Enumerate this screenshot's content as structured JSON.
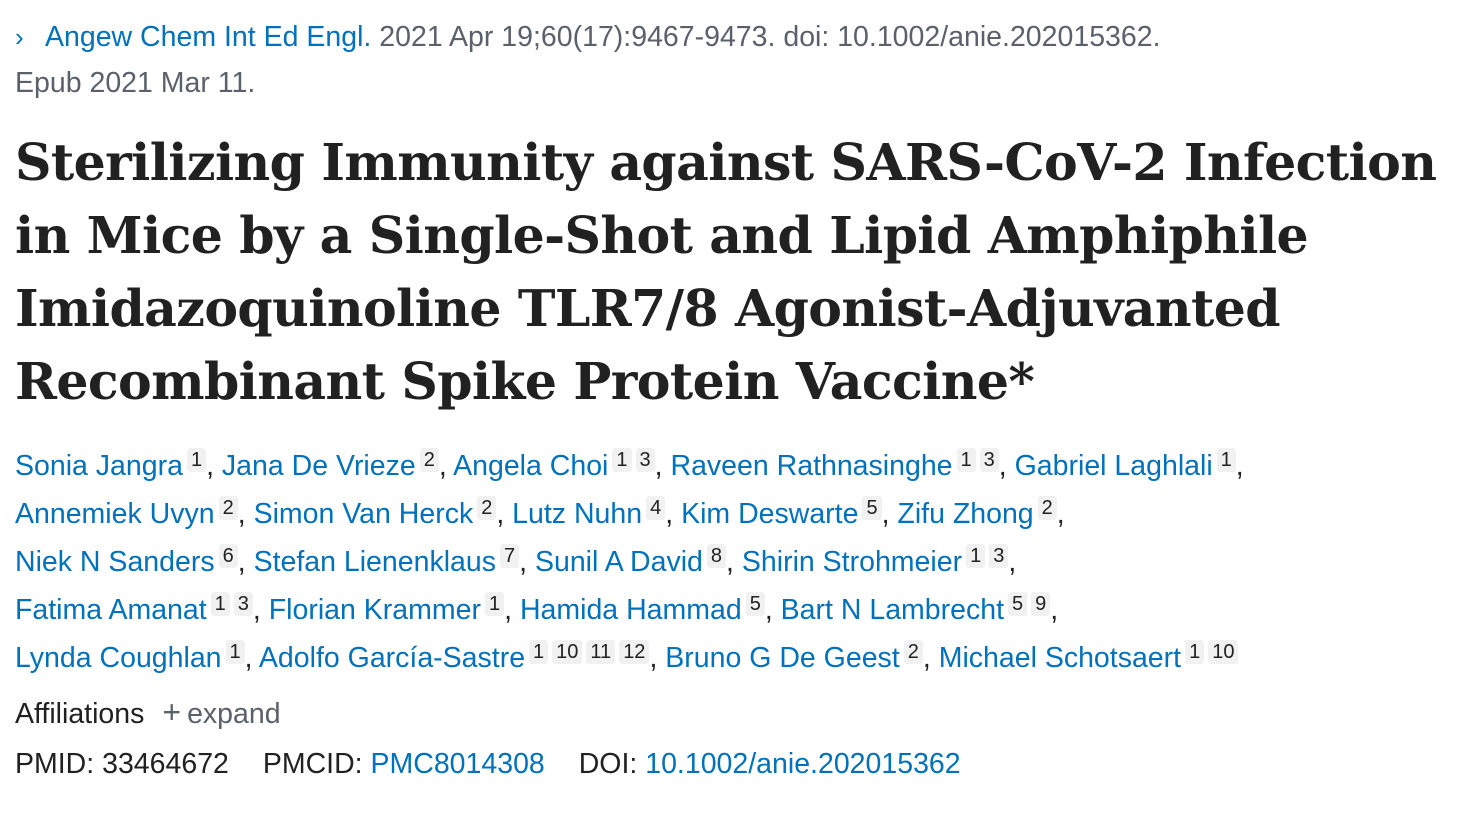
{
  "citation": {
    "chevron": "›",
    "journal": "Angew Chem Int Ed Engl.",
    "details": " 2021 Apr 19;60(17):9467-9473. doi: 10.1002/anie.202015362.",
    "epub": "Epub 2021 Mar 11."
  },
  "title": "Sterilizing Immunity against SARS-CoV-2 Infection in Mice by a Single-Shot and Lipid Amphiphile Imidazoquinoline TLR7/8 Agonist-Adjuvanted Recombinant Spike Protein Vaccine*",
  "authors": [
    {
      "name": "Sonia Jangra",
      "aff": [
        "1"
      ]
    },
    {
      "name": "Jana De Vrieze",
      "aff": [
        "2"
      ]
    },
    {
      "name": "Angela Choi",
      "aff": [
        "1",
        "3"
      ]
    },
    {
      "name": "Raveen Rathnasinghe",
      "aff": [
        "1",
        "3"
      ]
    },
    {
      "name": "Gabriel Laghlali",
      "aff": [
        "1"
      ]
    },
    {
      "name": "Annemiek Uvyn",
      "aff": [
        "2"
      ]
    },
    {
      "name": "Simon Van Herck",
      "aff": [
        "2"
      ]
    },
    {
      "name": "Lutz Nuhn",
      "aff": [
        "4"
      ]
    },
    {
      "name": "Kim Deswarte",
      "aff": [
        "5"
      ]
    },
    {
      "name": "Zifu Zhong",
      "aff": [
        "2"
      ]
    },
    {
      "name": "Niek N Sanders",
      "aff": [
        "6"
      ]
    },
    {
      "name": "Stefan Lienenklaus",
      "aff": [
        "7"
      ]
    },
    {
      "name": "Sunil A David",
      "aff": [
        "8"
      ]
    },
    {
      "name": "Shirin Strohmeier",
      "aff": [
        "1",
        "3"
      ]
    },
    {
      "name": "Fatima Amanat",
      "aff": [
        "1",
        "3"
      ]
    },
    {
      "name": "Florian Krammer",
      "aff": [
        "1"
      ]
    },
    {
      "name": "Hamida Hammad",
      "aff": [
        "5"
      ]
    },
    {
      "name": "Bart N Lambrecht",
      "aff": [
        "5",
        "9"
      ]
    },
    {
      "name": "Lynda Coughlan",
      "aff": [
        "1"
      ]
    },
    {
      "name": "Adolfo García-Sastre",
      "aff": [
        "1",
        "10",
        "11",
        "12"
      ]
    },
    {
      "name": "Bruno G De Geest",
      "aff": [
        "2"
      ]
    },
    {
      "name": "Michael Schotsaert",
      "aff": [
        "1",
        "10"
      ]
    }
  ],
  "author_lines": [
    [
      0,
      1,
      2,
      3,
      4
    ],
    [
      5,
      6,
      7,
      8,
      9
    ],
    [
      10,
      11,
      12,
      13
    ],
    [
      14,
      15,
      16,
      17
    ],
    [
      18,
      19,
      20,
      21
    ]
  ],
  "affiliations": {
    "label": "Affiliations",
    "plus": "+",
    "expand": "expand"
  },
  "identifiers": {
    "pmid_label": "PMID:",
    "pmid": "33464672",
    "pmcid_label": "PMCID:",
    "pmcid": "PMC8014308",
    "doi_label": "DOI:",
    "doi": "10.1002/anie.202015362"
  }
}
